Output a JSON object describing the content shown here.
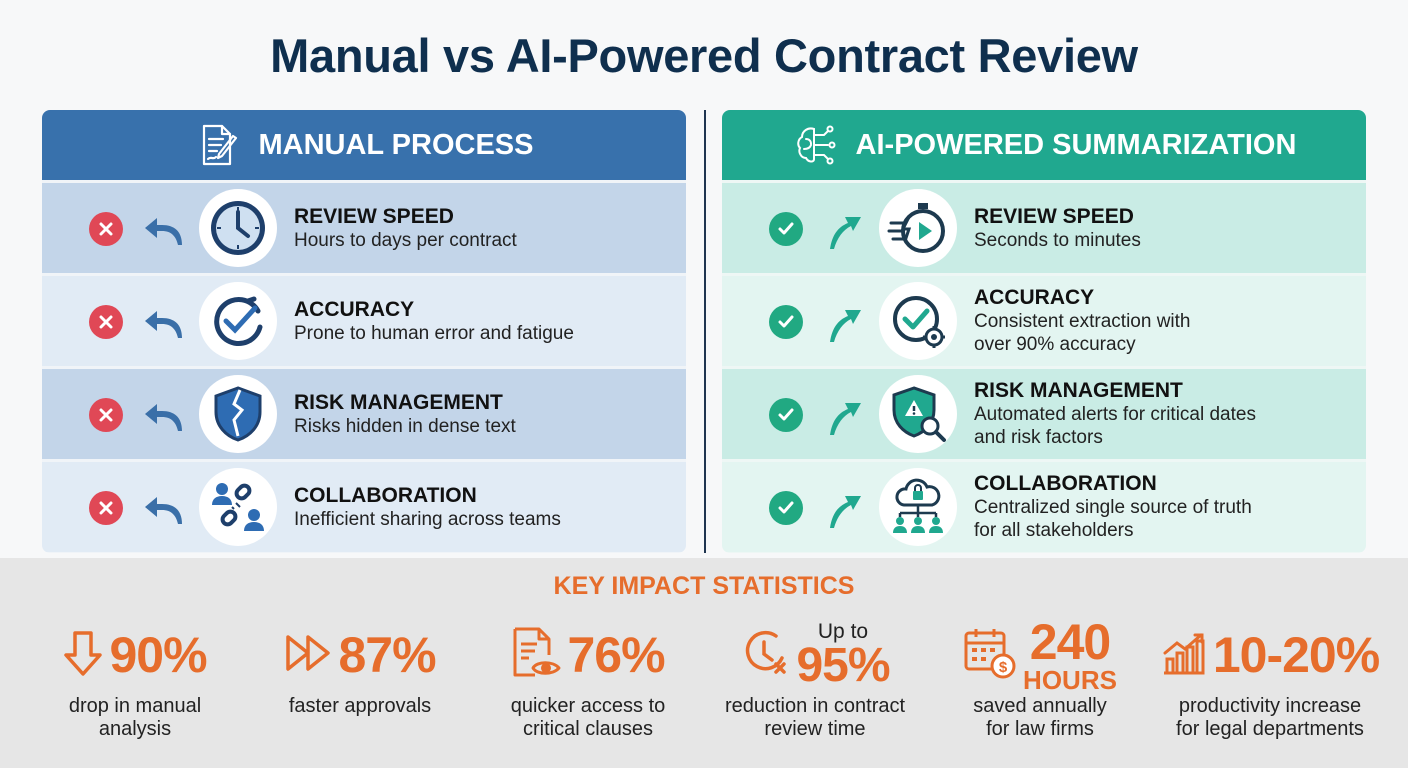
{
  "title": "Manual vs AI-Powered Contract Review",
  "manual": {
    "header": "MANUAL PROCESS",
    "header_icon": "document-pen-icon",
    "rows": [
      {
        "title": "REVIEW SPEED",
        "desc": "Hours to days per contract",
        "icon": "clock-icon"
      },
      {
        "title": "ACCURACY",
        "desc": "Prone to human error and fatigue",
        "icon": "broken-check-icon"
      },
      {
        "title": "RISK MANAGEMENT",
        "desc": "Risks hidden in dense text",
        "icon": "cracked-shield-icon"
      },
      {
        "title": "COLLABORATION",
        "desc": "Inefficient sharing across teams",
        "icon": "broken-link-people-icon"
      }
    ]
  },
  "ai": {
    "header": "AI-POWERED SUMMARIZATION",
    "header_icon": "ai-brain-circuit-icon",
    "rows": [
      {
        "title": "REVIEW SPEED",
        "desc": "Seconds to minutes",
        "icon": "fast-stopwatch-icon"
      },
      {
        "title": "ACCURACY",
        "desc": "Consistent extraction with\nover 90% accuracy",
        "icon": "check-gear-icon"
      },
      {
        "title": "RISK MANAGEMENT",
        "desc": "Automated alerts for critical dates\nand risk factors",
        "icon": "shield-alert-search-icon"
      },
      {
        "title": "COLLABORATION",
        "desc": "Centralized single source of truth\nfor all stakeholders",
        "icon": "cloud-network-icon"
      }
    ]
  },
  "stats": {
    "title": "KEY IMPACT STATISTICS",
    "items": [
      {
        "value": "90%",
        "desc": "drop in manual\nanalysis",
        "icon": "down-arrow-icon"
      },
      {
        "value": "87%",
        "desc": "faster approvals",
        "icon": "fast-forward-icon"
      },
      {
        "value": "76%",
        "desc": "quicker access to\ncritical clauses",
        "icon": "document-eye-icon"
      },
      {
        "prefix": "Up to",
        "value": "95%",
        "desc": "reduction in contract\nreview time",
        "icon": "clock-reduction-icon"
      },
      {
        "value": "240",
        "unit": "HOURS",
        "desc": "saved annually\nfor law firms",
        "icon": "calendar-coin-icon"
      },
      {
        "value": "10-20%",
        "desc": "productivity increase\nfor legal departments",
        "icon": "growth-chart-icon"
      }
    ]
  },
  "colors": {
    "manual_blue": "#3871ac",
    "ai_green": "#20a88f",
    "stat_orange": "#e66d2c",
    "error_red": "#e04856",
    "success_green": "#21a982"
  }
}
